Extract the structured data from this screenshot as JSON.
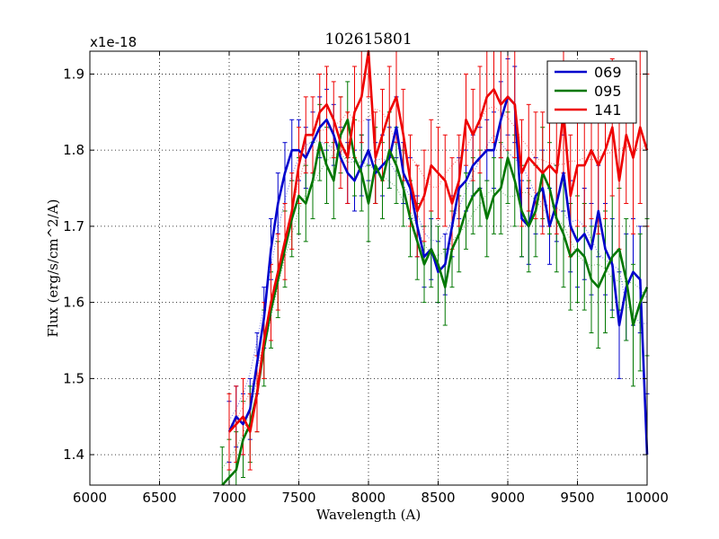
{
  "chart_data": {
    "type": "line",
    "title": "102615801",
    "xlabel": "Wavelength (A)",
    "ylabel": "Flux (erg/s/cm^2/A)",
    "offset_label": "x1e-18",
    "xlim": [
      6000,
      10000
    ],
    "ylim": [
      1.36,
      1.93
    ],
    "xticks": [
      6000,
      6500,
      7000,
      7500,
      8000,
      8500,
      9000,
      9500,
      10000
    ],
    "xtick_labels": [
      "6000",
      "6500",
      "7000",
      "7500",
      "8000",
      "8500",
      "9000",
      "9500",
      "10000"
    ],
    "yticks": [
      1.4,
      1.5,
      1.6,
      1.7,
      1.8,
      1.9
    ],
    "ytick_labels": [
      "1.4",
      "1.5",
      "1.6",
      "1.7",
      "1.8",
      "1.9"
    ],
    "grid": true,
    "legend_position": "top-right",
    "series": [
      {
        "name": "069",
        "color": "#0000cc",
        "x": [
          7000,
          7050,
          7100,
          7150,
          7200,
          7250,
          7300,
          7350,
          7400,
          7450,
          7500,
          7550,
          7600,
          7650,
          7700,
          7750,
          7800,
          7850,
          7900,
          7950,
          8000,
          8050,
          8100,
          8150,
          8200,
          8250,
          8300,
          8350,
          8400,
          8450,
          8500,
          8550,
          8600,
          8650,
          8700,
          8750,
          8800,
          8850,
          8900,
          8950,
          9000,
          9050,
          9100,
          9150,
          9200,
          9250,
          9300,
          9350,
          9400,
          9450,
          9500,
          9550,
          9600,
          9650,
          9700,
          9750,
          9800,
          9850,
          9900,
          9950,
          10000
        ],
        "y": [
          1.43,
          1.45,
          1.44,
          1.46,
          1.52,
          1.58,
          1.67,
          1.73,
          1.77,
          1.8,
          1.8,
          1.79,
          1.81,
          1.83,
          1.84,
          1.82,
          1.79,
          1.77,
          1.76,
          1.78,
          1.8,
          1.77,
          1.78,
          1.79,
          1.83,
          1.77,
          1.75,
          1.7,
          1.66,
          1.67,
          1.64,
          1.65,
          1.7,
          1.75,
          1.76,
          1.78,
          1.79,
          1.8,
          1.8,
          1.84,
          1.87,
          1.86,
          1.71,
          1.7,
          1.74,
          1.75,
          1.7,
          1.73,
          1.77,
          1.7,
          1.68,
          1.69,
          1.67,
          1.72,
          1.67,
          1.65,
          1.57,
          1.62,
          1.64,
          1.63,
          1.4
        ],
        "errors": [
          0.04,
          0.04,
          0.04,
          0.04,
          0.04,
          0.04,
          0.04,
          0.04,
          0.04,
          0.04,
          0.04,
          0.04,
          0.04,
          0.04,
          0.04,
          0.04,
          0.04,
          0.04,
          0.04,
          0.04,
          0.04,
          0.04,
          0.04,
          0.04,
          0.04,
          0.04,
          0.04,
          0.04,
          0.04,
          0.04,
          0.04,
          0.04,
          0.04,
          0.04,
          0.04,
          0.04,
          0.04,
          0.04,
          0.05,
          0.05,
          0.05,
          0.05,
          0.05,
          0.05,
          0.05,
          0.05,
          0.05,
          0.05,
          0.05,
          0.06,
          0.06,
          0.06,
          0.06,
          0.06,
          0.06,
          0.06,
          0.07,
          0.07,
          0.07,
          0.07,
          0.08
        ]
      },
      {
        "name": "095",
        "color": "#007700",
        "x": [
          6950,
          7000,
          7050,
          7100,
          7150,
          7200,
          7250,
          7300,
          7350,
          7400,
          7450,
          7500,
          7550,
          7600,
          7650,
          7700,
          7750,
          7800,
          7850,
          7900,
          7950,
          8000,
          8050,
          8100,
          8150,
          8200,
          8250,
          8300,
          8350,
          8400,
          8450,
          8500,
          8550,
          8600,
          8650,
          8700,
          8750,
          8800,
          8850,
          8900,
          8950,
          9000,
          9050,
          9100,
          9150,
          9200,
          9250,
          9300,
          9350,
          9400,
          9450,
          9500,
          9550,
          9600,
          9650,
          9700,
          9750,
          9800,
          9850,
          9900,
          9950,
          10000
        ],
        "y": [
          1.36,
          1.37,
          1.38,
          1.42,
          1.44,
          1.48,
          1.54,
          1.59,
          1.63,
          1.67,
          1.71,
          1.74,
          1.73,
          1.76,
          1.81,
          1.78,
          1.76,
          1.82,
          1.84,
          1.79,
          1.77,
          1.73,
          1.78,
          1.76,
          1.8,
          1.78,
          1.75,
          1.71,
          1.68,
          1.65,
          1.67,
          1.65,
          1.62,
          1.67,
          1.69,
          1.72,
          1.74,
          1.75,
          1.71,
          1.74,
          1.75,
          1.79,
          1.76,
          1.72,
          1.7,
          1.72,
          1.77,
          1.75,
          1.71,
          1.69,
          1.66,
          1.67,
          1.66,
          1.63,
          1.62,
          1.64,
          1.66,
          1.67,
          1.63,
          1.57,
          1.6,
          1.62
        ],
        "errors": [
          0.05,
          0.05,
          0.05,
          0.05,
          0.05,
          0.05,
          0.05,
          0.05,
          0.05,
          0.05,
          0.05,
          0.05,
          0.05,
          0.05,
          0.05,
          0.05,
          0.05,
          0.05,
          0.05,
          0.05,
          0.05,
          0.05,
          0.05,
          0.05,
          0.05,
          0.05,
          0.05,
          0.05,
          0.05,
          0.05,
          0.05,
          0.05,
          0.05,
          0.05,
          0.05,
          0.05,
          0.05,
          0.05,
          0.05,
          0.05,
          0.06,
          0.06,
          0.06,
          0.06,
          0.06,
          0.06,
          0.06,
          0.06,
          0.07,
          0.07,
          0.07,
          0.07,
          0.07,
          0.07,
          0.08,
          0.08,
          0.08,
          0.08,
          0.08,
          0.08,
          0.09,
          0.09
        ]
      },
      {
        "name": "141",
        "color": "#ee0000",
        "x": [
          7000,
          7050,
          7100,
          7150,
          7200,
          7250,
          7300,
          7350,
          7400,
          7450,
          7500,
          7550,
          7600,
          7650,
          7700,
          7750,
          7800,
          7850,
          7900,
          7950,
          8000,
          8050,
          8100,
          8150,
          8200,
          8250,
          8300,
          8350,
          8400,
          8450,
          8500,
          8550,
          8600,
          8650,
          8700,
          8750,
          8800,
          8850,
          8900,
          8950,
          9000,
          9050,
          9100,
          9150,
          9200,
          9250,
          9300,
          9350,
          9400,
          9450,
          9500,
          9550,
          9600,
          9650,
          9700,
          9750,
          9800,
          9850,
          9900,
          9950,
          10000
        ],
        "y": [
          1.43,
          1.44,
          1.45,
          1.43,
          1.48,
          1.55,
          1.6,
          1.64,
          1.68,
          1.72,
          1.78,
          1.82,
          1.82,
          1.85,
          1.86,
          1.84,
          1.81,
          1.79,
          1.85,
          1.87,
          1.93,
          1.79,
          1.82,
          1.85,
          1.87,
          1.82,
          1.76,
          1.72,
          1.74,
          1.78,
          1.77,
          1.76,
          1.73,
          1.76,
          1.84,
          1.82,
          1.84,
          1.87,
          1.88,
          1.86,
          1.87,
          1.86,
          1.77,
          1.79,
          1.78,
          1.77,
          1.78,
          1.77,
          1.85,
          1.74,
          1.78,
          1.78,
          1.8,
          1.78,
          1.8,
          1.83,
          1.76,
          1.82,
          1.79,
          1.83,
          1.8
        ],
        "errors": [
          0.05,
          0.05,
          0.05,
          0.05,
          0.05,
          0.05,
          0.05,
          0.05,
          0.05,
          0.05,
          0.05,
          0.05,
          0.05,
          0.05,
          0.05,
          0.05,
          0.06,
          0.06,
          0.06,
          0.06,
          0.06,
          0.06,
          0.06,
          0.06,
          0.06,
          0.06,
          0.06,
          0.06,
          0.06,
          0.06,
          0.06,
          0.06,
          0.06,
          0.06,
          0.06,
          0.06,
          0.07,
          0.07,
          0.07,
          0.07,
          0.07,
          0.07,
          0.07,
          0.07,
          0.07,
          0.08,
          0.08,
          0.08,
          0.08,
          0.08,
          0.08,
          0.08,
          0.09,
          0.09,
          0.09,
          0.09,
          0.09,
          0.09,
          0.1,
          0.1,
          0.1
        ]
      }
    ]
  }
}
